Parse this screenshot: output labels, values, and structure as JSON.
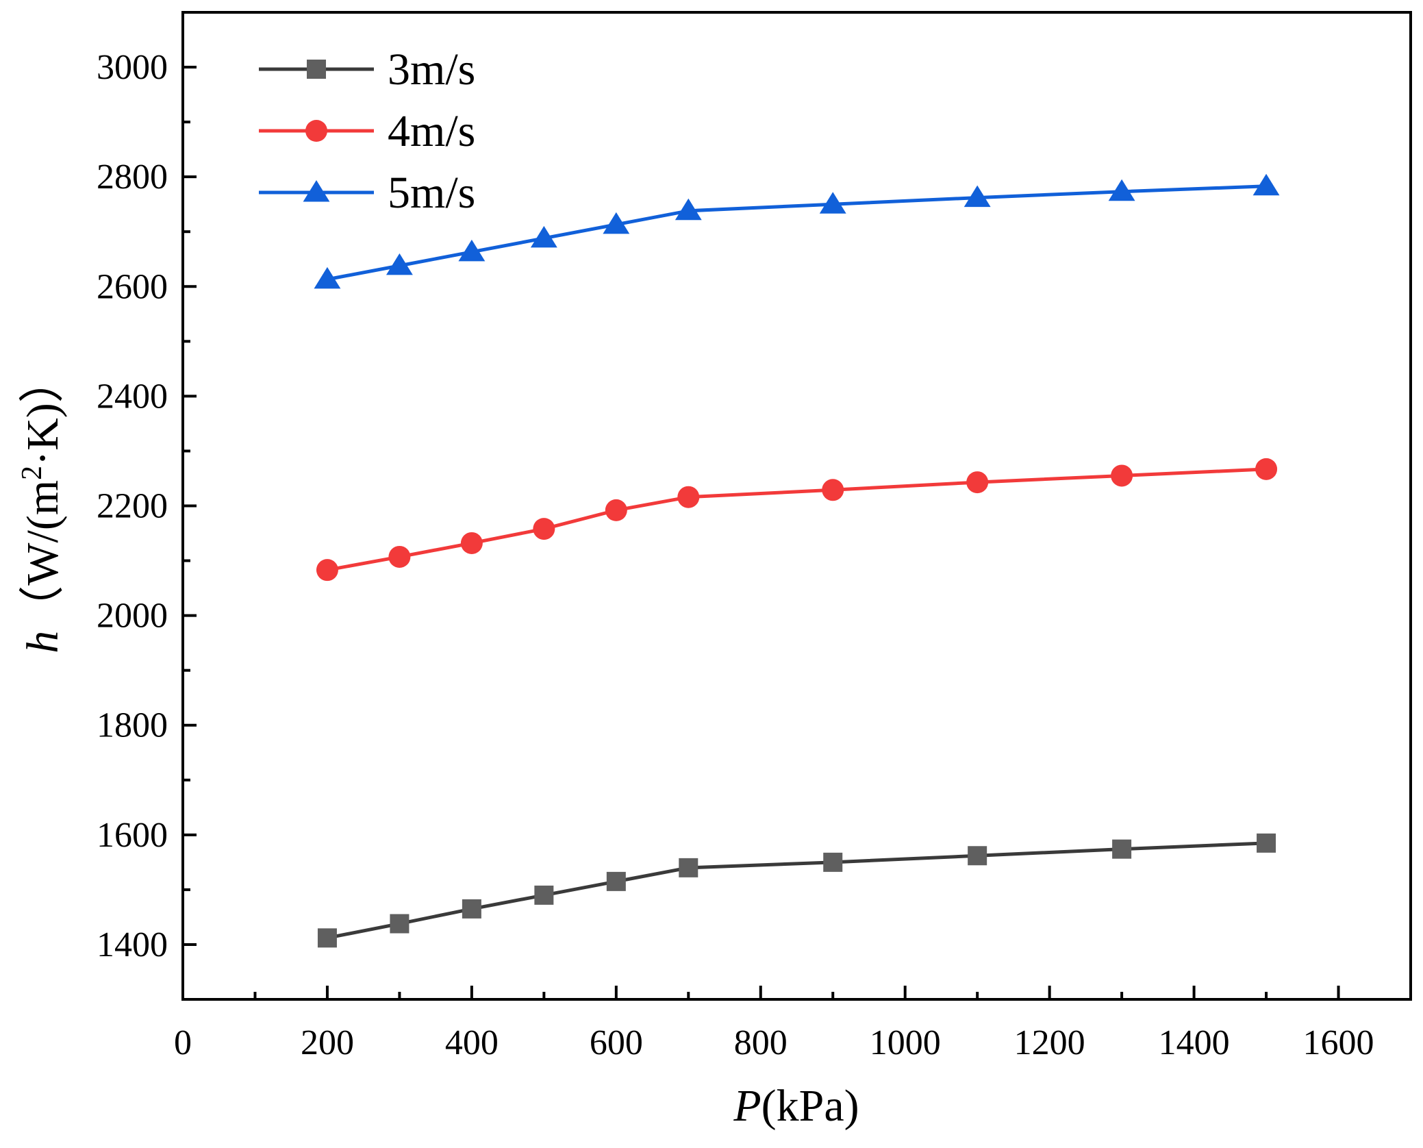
{
  "chart_data": {
    "type": "line",
    "xlabel_var": "P",
    "xlabel_unit": "(kPa)",
    "ylabel_var": "h",
    "ylabel_unit": "（W/(m",
    "ylabel_sup": "2",
    "ylabel_tail": "·K)）",
    "xlim": [
      0,
      1700
    ],
    "ylim": [
      1300,
      3100
    ],
    "xticks": [
      "0",
      "200",
      "400",
      "600",
      "800",
      "1000",
      "1200",
      "1400",
      "1600"
    ],
    "yticks": [
      "1400",
      "1600",
      "1800",
      "2000",
      "2200",
      "2400",
      "2600",
      "2800",
      "3000"
    ],
    "x": [
      200,
      300,
      400,
      500,
      600,
      700,
      900,
      1100,
      1300,
      1500
    ],
    "legend_position": "top-left",
    "series": [
      {
        "name": "3m/s",
        "marker": "square",
        "color": "#5f5f5f",
        "line_color": "#3a3a3a",
        "values": [
          1412,
          1438,
          1465,
          1490,
          1515,
          1540,
          1550,
          1562,
          1574,
          1585
        ]
      },
      {
        "name": "4m/s",
        "marker": "circle",
        "color": "#f23a3a",
        "line_color": "#f23a3a",
        "values": [
          2083,
          2107,
          2132,
          2158,
          2192,
          2216,
          2229,
          2243,
          2255,
          2267
        ]
      },
      {
        "name": "5m/s",
        "marker": "triangle",
        "color": "#1160d9",
        "line_color": "#1160d9",
        "values": [
          2613,
          2638,
          2663,
          2688,
          2713,
          2738,
          2750,
          2762,
          2773,
          2783
        ]
      }
    ]
  }
}
